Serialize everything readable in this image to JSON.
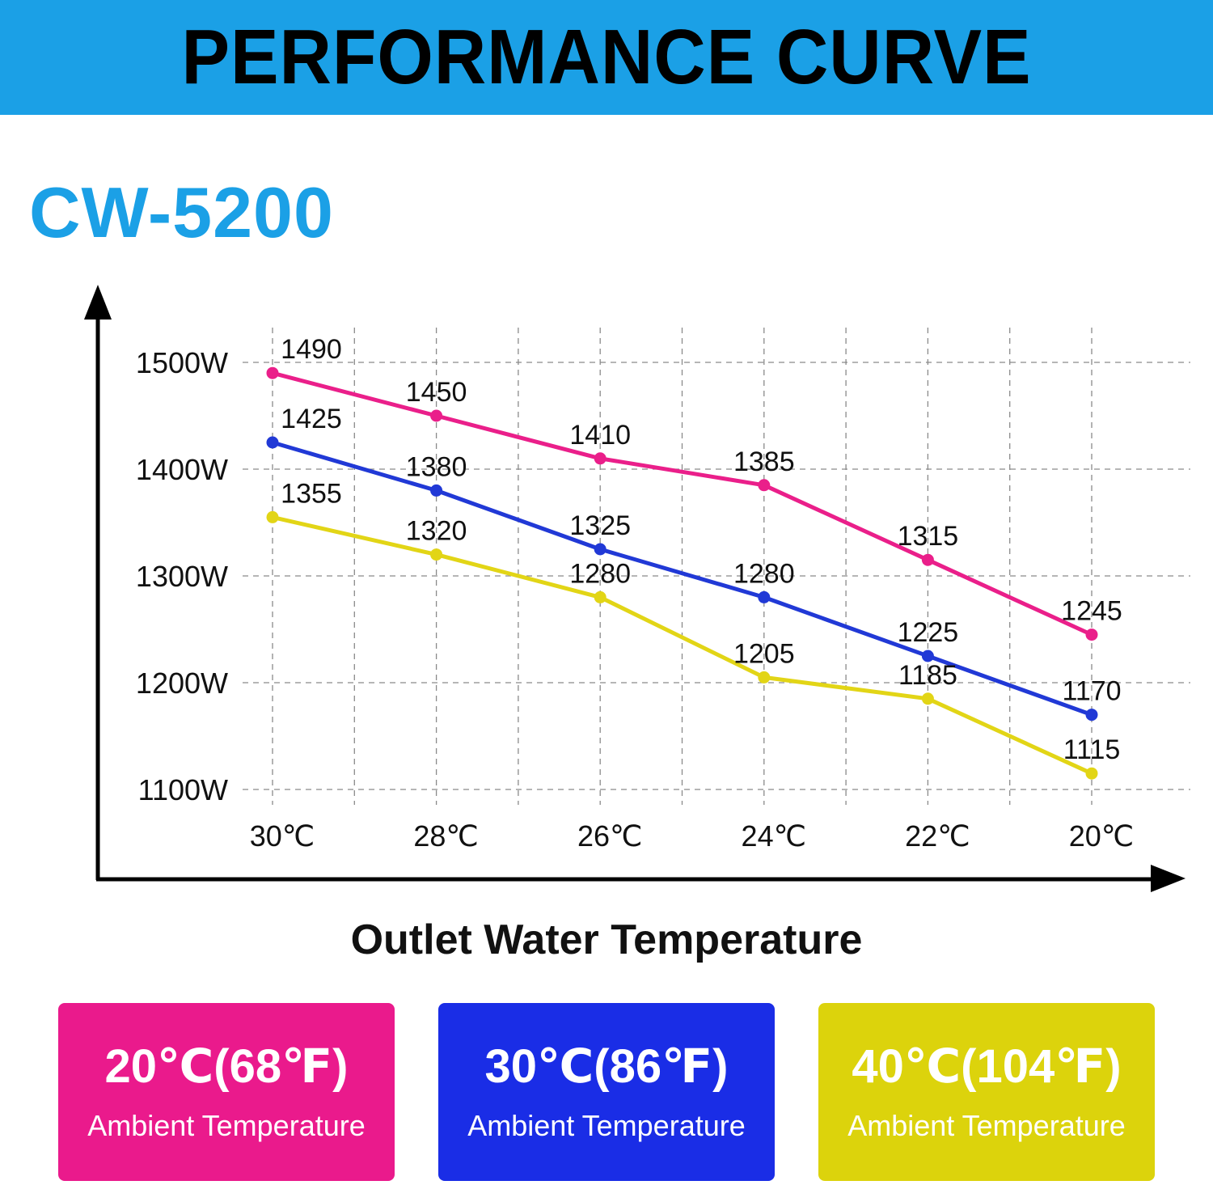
{
  "header": {
    "title": "PERFORMANCE CURVE"
  },
  "model": "CW-5200",
  "chart_data": {
    "type": "line",
    "title": "CW-5200",
    "xlabel": "Outlet Water Temperature",
    "ylabel": "",
    "categories": [
      "30℃",
      "28℃",
      "26℃",
      "24℃",
      "22℃",
      "20℃"
    ],
    "ytick_labels": [
      "1500W",
      "1400W",
      "1300W",
      "1200W",
      "1100W"
    ],
    "ylim": [
      1100,
      1500
    ],
    "grid": true,
    "legend_placement": "bottom",
    "series": [
      {
        "name": "20℃(68℉) Ambient Temperature",
        "color": "#ea1f8a",
        "values": [
          1490,
          1450,
          1410,
          1385,
          1315,
          1245
        ]
      },
      {
        "name": "30℃(86℉) Ambient Temperature",
        "color": "#2139d6",
        "values": [
          1425,
          1380,
          1325,
          1280,
          1225,
          1170
        ]
      },
      {
        "name": "40℃(104℉) Ambient Temperature",
        "color": "#e2d516",
        "values": [
          1355,
          1320,
          1280,
          1205,
          1185,
          1115
        ]
      }
    ]
  },
  "legend": [
    {
      "temp": "20℃(68℉)",
      "label": "Ambient Temperature",
      "color": "#ea1a8c"
    },
    {
      "temp": "30℃(86℉)",
      "label": "Ambient Temperature",
      "color": "#1a2de6"
    },
    {
      "temp": "40℃(104℉)",
      "label": "Ambient Temperature",
      "color": "#dcd30c"
    }
  ]
}
